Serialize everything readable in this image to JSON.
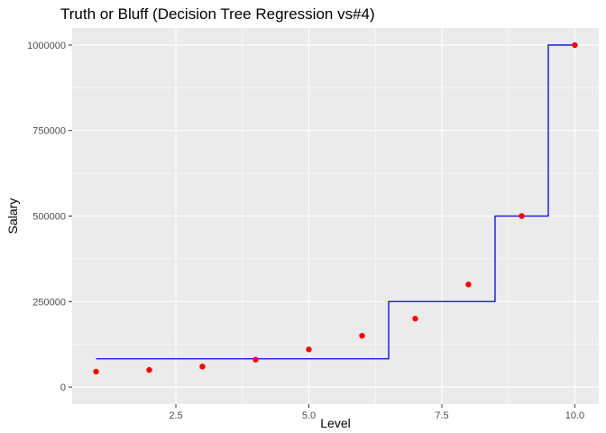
{
  "chart_data": {
    "type": "scatter",
    "title": "Truth or Bluff (Decision Tree Regression vs#4)",
    "xlabel": "Level",
    "ylabel": "Salary",
    "xlim": [
      0.55,
      10.45
    ],
    "ylim": [
      -50000,
      1050000
    ],
    "x_ticks": [
      2.5,
      5.0,
      7.5,
      10.0
    ],
    "x_tick_labels": [
      "2.5",
      "5.0",
      "7.5",
      "10.0"
    ],
    "y_ticks": [
      0,
      250000,
      500000,
      750000,
      1000000
    ],
    "y_tick_labels": [
      "0",
      "250000",
      "500000",
      "750000",
      "1000000"
    ],
    "grid": true,
    "points": {
      "color": "#ff0000",
      "x": [
        1,
        2,
        3,
        4,
        5,
        6,
        7,
        8,
        9,
        10
      ],
      "y": [
        45000,
        50000,
        60000,
        80000,
        110000,
        150000,
        200000,
        300000,
        500000,
        1000000
      ]
    },
    "step_line": {
      "color": "#0000ff",
      "x": [
        1,
        6.5,
        6.5,
        8.5,
        8.5,
        9.5,
        9.5,
        10
      ],
      "y": [
        82500,
        82500,
        250000,
        250000,
        500000,
        500000,
        1000000,
        1000000
      ]
    }
  }
}
